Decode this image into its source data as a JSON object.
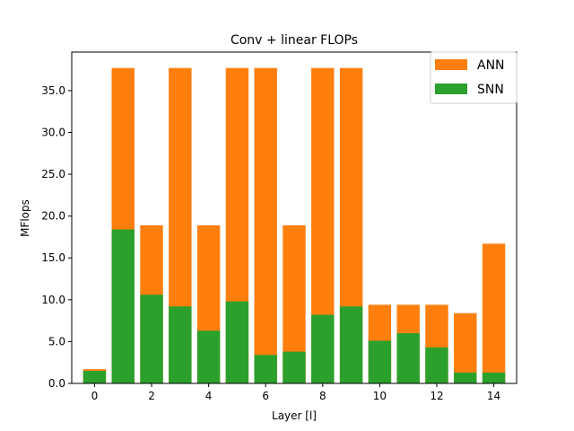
{
  "chart_data": {
    "type": "bar",
    "title": "Conv + linear FLOPs",
    "xlabel": "Layer [l]",
    "ylabel": "MFlops",
    "x": [
      0,
      1,
      2,
      3,
      4,
      5,
      6,
      7,
      8,
      9,
      10,
      11,
      12,
      13,
      14
    ],
    "xticks": [
      0,
      2,
      4,
      6,
      8,
      10,
      12,
      14
    ],
    "yticks": [
      0.0,
      5.0,
      10.0,
      15.0,
      20.0,
      25.0,
      30.0,
      35.0
    ],
    "xlim": [
      -0.8,
      14.8
    ],
    "ylim": [
      0,
      39.6
    ],
    "grid": false,
    "legend_position": "top-right",
    "series": [
      {
        "name": "ANN",
        "color": "#ff7f0e",
        "values": [
          1.7,
          37.7,
          18.9,
          37.7,
          18.9,
          37.7,
          37.7,
          18.9,
          37.7,
          37.7,
          9.4,
          9.4,
          9.4,
          8.4,
          16.7
        ]
      },
      {
        "name": "SNN",
        "color": "#2ca02c",
        "values": [
          1.5,
          18.4,
          10.6,
          9.2,
          6.3,
          9.8,
          3.4,
          3.8,
          8.2,
          9.2,
          5.1,
          6.0,
          4.3,
          1.3,
          1.3
        ]
      }
    ]
  }
}
